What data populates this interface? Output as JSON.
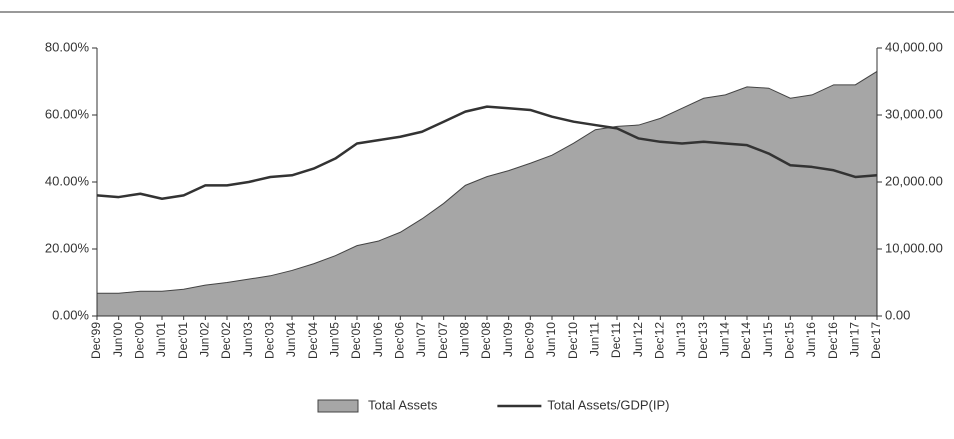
{
  "chart_data": {
    "type": "area-line",
    "categories": [
      "Dec'99",
      "Jun'00",
      "Dec'00",
      "Jun'01",
      "Dec'01",
      "Jun'02",
      "Dec'02",
      "Jun'03",
      "Dec'03",
      "Jun'04",
      "Dec'04",
      "Jun'05",
      "Dec'05",
      "Jun'06",
      "Dec'06",
      "Jun'07",
      "Dec'07",
      "Jun'08",
      "Dec'08",
      "Jun'09",
      "Dec'09",
      "Jun'10",
      "Dec'10",
      "Jun'11",
      "Dec'11",
      "Jun'12",
      "Dec'12",
      "Jun'13",
      "Dec'13",
      "Jun'14",
      "Dec'14",
      "Jun'15",
      "Dec'15",
      "Jun'16",
      "Dec'16",
      "Jun'17",
      "Dec'17"
    ],
    "series": [
      {
        "name": "Total Assets",
        "type": "area",
        "axis": "y2",
        "color": "#a6a6a6",
        "values": [
          3400,
          3400,
          3700,
          3700,
          4000,
          4600,
          5000,
          5500,
          6000,
          6800,
          7800,
          9000,
          10500,
          11200,
          12500,
          14500,
          16800,
          19500,
          20800,
          21700,
          22800,
          24000,
          25800,
          27800,
          28300,
          28500,
          29500,
          31000,
          32500,
          33000,
          34200,
          34000,
          32500,
          33000,
          34500,
          34500,
          36500
        ]
      },
      {
        "name": "Total Assets/GDP(IP)",
        "type": "line",
        "axis": "y",
        "color": "#333333",
        "values": [
          36,
          35.5,
          36.5,
          35,
          36,
          39,
          39,
          40,
          41.5,
          42,
          44,
          47,
          51.5,
          52.5,
          53.5,
          55,
          58,
          61,
          62.5,
          62,
          61.5,
          59.5,
          58,
          57,
          56,
          53,
          52,
          51.5,
          52,
          51.5,
          51,
          48.5,
          45,
          44.5,
          43.5,
          41.5,
          42
        ]
      }
    ],
    "ylim": [
      0,
      80
    ],
    "yticks": [
      {
        "value": 0,
        "label": "0.00%"
      },
      {
        "value": 20,
        "label": "20.00%"
      },
      {
        "value": 40,
        "label": "40.00%"
      },
      {
        "value": 60,
        "label": "60.00%"
      },
      {
        "value": 80,
        "label": "80.00%"
      }
    ],
    "y2lim": [
      0,
      40000
    ],
    "y2ticks": [
      {
        "value": 0,
        "label": "0.00"
      },
      {
        "value": 10000,
        "label": "10,000.00"
      },
      {
        "value": 20000,
        "label": "20,000.00"
      },
      {
        "value": 30000,
        "label": "30,000.00"
      },
      {
        "value": 40000,
        "label": "40,000.00"
      }
    ],
    "legend": "bottom"
  }
}
